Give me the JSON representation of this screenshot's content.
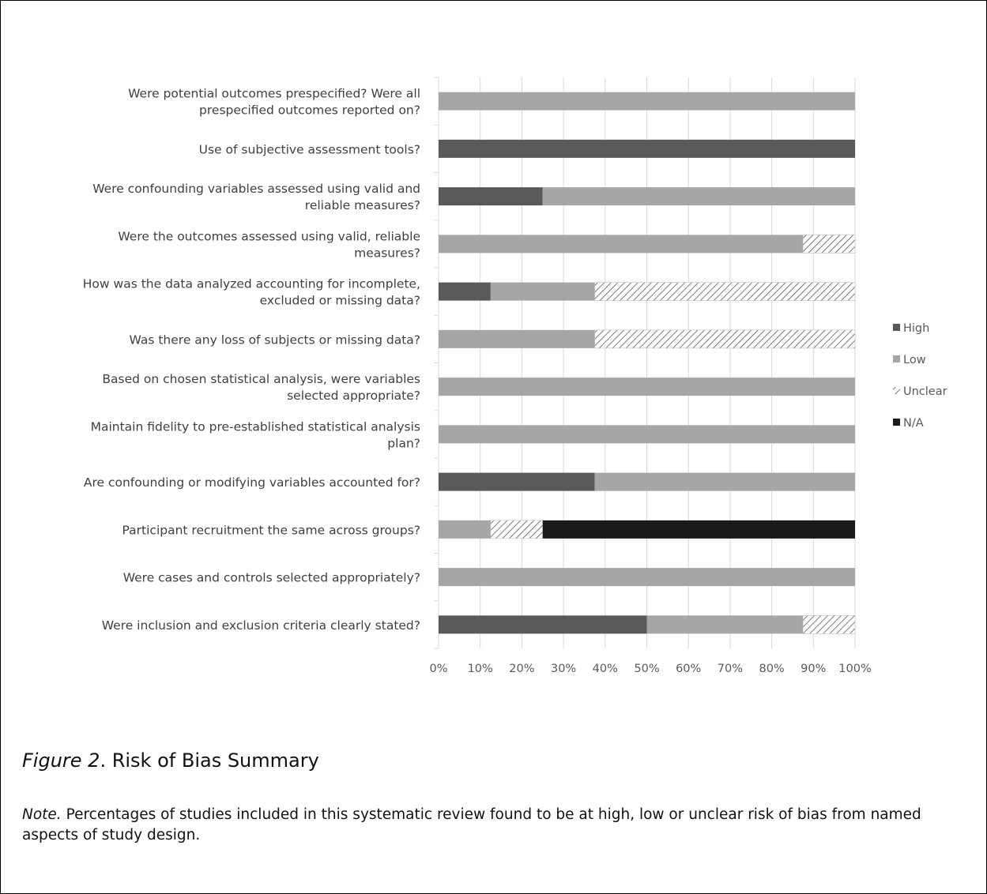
{
  "chart_data": {
    "type": "bar",
    "orientation": "horizontal",
    "stacked": "percent",
    "categories": [
      [
        "Were potential outcomes prespecified? Were all",
        "prespecified outcomes reported on?"
      ],
      [
        "Use of subjective assessment tools?"
      ],
      [
        "Were confounding variables assessed using valid and",
        "reliable measures?"
      ],
      [
        "Were the outcomes assessed using valid, reliable",
        "measures?"
      ],
      [
        "How was the data analyzed accounting for incomplete,",
        "excluded or missing data?"
      ],
      [
        "Was there any loss of subjects or missing data?"
      ],
      [
        "Based on chosen statistical analysis, were variables",
        "selected appropriate?"
      ],
      [
        "Maintain fidelity to pre-established statistical analysis",
        "plan?"
      ],
      [
        "Are confounding or modifying variables accounted for?"
      ],
      [
        "Participant recruitment the same across groups?"
      ],
      [
        "Were cases and controls selected appropriately?"
      ],
      [
        "Were inclusion and exclusion criteria clearly stated?"
      ]
    ],
    "series": [
      {
        "name": "High",
        "color": "#595959",
        "pattern": "solid",
        "values": [
          0,
          100,
          25,
          0,
          12.5,
          0,
          0,
          0,
          37.5,
          0,
          0,
          50
        ]
      },
      {
        "name": "Low",
        "color": "#a6a6a6",
        "pattern": "solid",
        "values": [
          100,
          0,
          75,
          87.5,
          25,
          37.5,
          100,
          100,
          62.5,
          12.5,
          100,
          37.5
        ]
      },
      {
        "name": "Unclear",
        "color": "#595959",
        "pattern": "hatch",
        "values": [
          0,
          0,
          0,
          12.5,
          62.5,
          62.5,
          0,
          0,
          0,
          12.5,
          0,
          12.5
        ]
      },
      {
        "name": "N/A",
        "color": "#1a1a1a",
        "pattern": "solid",
        "values": [
          0,
          0,
          0,
          0,
          0,
          0,
          0,
          0,
          0,
          75,
          0,
          0
        ]
      }
    ],
    "xlim": [
      0,
      100
    ],
    "xticks": [
      "0%",
      "10%",
      "20%",
      "30%",
      "40%",
      "50%",
      "60%",
      "70%",
      "80%",
      "90%",
      "100%"
    ],
    "grid": true,
    "legend_position": "right"
  },
  "caption": {
    "figure_label": "Figure 2",
    "title": ". Risk of Bias Summary"
  },
  "note": {
    "label": "Note.",
    "text": " Percentages of studies included in this systematic review found to be at high, low or unclear risk of bias from named aspects of study design."
  }
}
